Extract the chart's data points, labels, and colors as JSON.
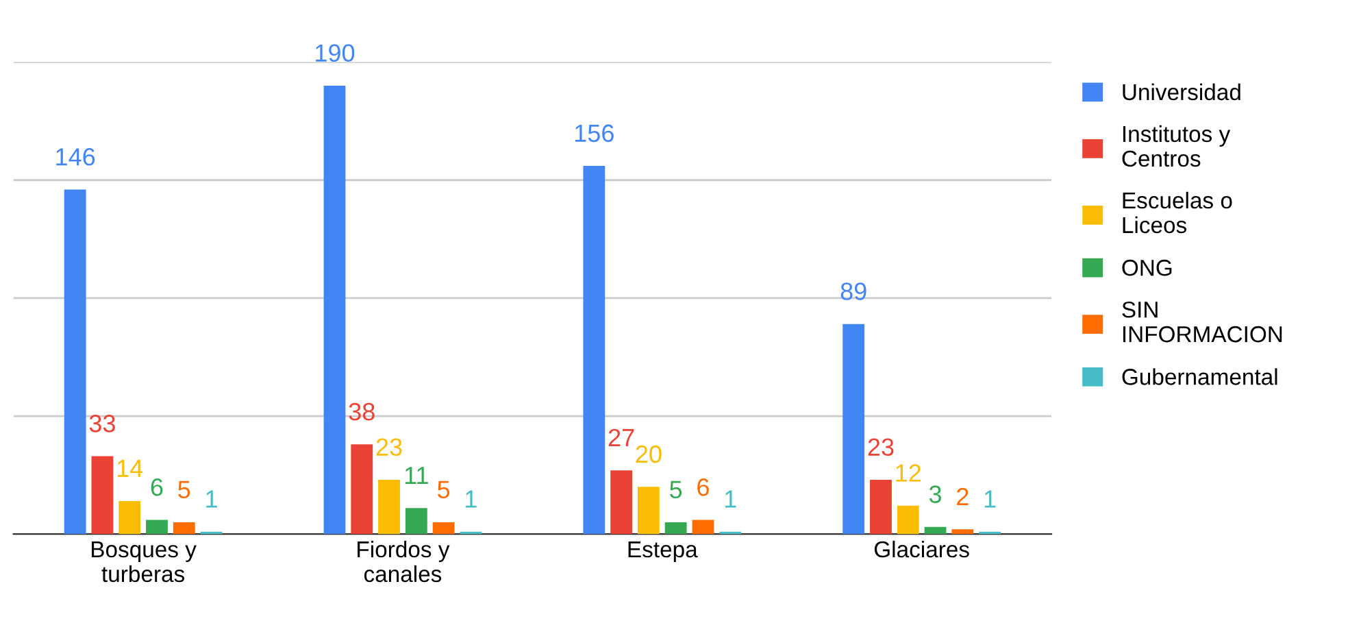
{
  "chart_data": {
    "type": "bar",
    "categories": [
      "Bosques y\nturberas",
      "Fiordos y\ncanales",
      "Estepa",
      "Glaciares"
    ],
    "series": [
      {
        "name": "Universidad",
        "color": "#4285f4",
        "values": [
          146,
          190,
          156,
          89
        ]
      },
      {
        "name": "Institutos y\nCentros",
        "color": "#ea4335",
        "values": [
          33,
          38,
          27,
          23
        ]
      },
      {
        "name": "Escuelas o\nLiceos",
        "color": "#fbbc04",
        "values": [
          14,
          23,
          20,
          12
        ]
      },
      {
        "name": "ONG",
        "color": "#34a853",
        "values": [
          6,
          11,
          5,
          3
        ]
      },
      {
        "name": "SIN\nINFORMACION",
        "color": "#ff6d01",
        "values": [
          5,
          5,
          6,
          2
        ]
      },
      {
        "name": "Gubernamental",
        "color": "#46bdc6",
        "values": [
          1,
          1,
          1,
          1
        ]
      }
    ],
    "ylim": [
      0,
      200
    ],
    "yticks": [
      {
        "value": 0,
        "label": null
      },
      {
        "value": 50,
        "label": null
      },
      {
        "value": 100,
        "label": null
      },
      {
        "value": 150,
        "label": null
      },
      {
        "value": 200,
        "label": null
      }
    ],
    "grid": "y",
    "legend": "right",
    "data_labels": true
  }
}
